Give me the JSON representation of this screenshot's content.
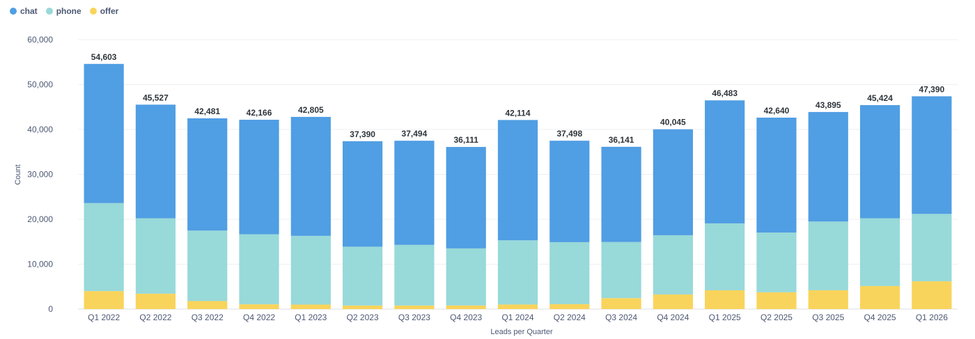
{
  "chart_data": {
    "type": "bar",
    "stacked": true,
    "xlabel": "Leads per Quarter",
    "ylabel": "Count",
    "ylim": [
      0,
      60000
    ],
    "yticks": [
      0,
      10000,
      20000,
      30000,
      40000,
      50000,
      60000
    ],
    "ytick_labels": [
      "0",
      "10,000",
      "20,000",
      "30,000",
      "40,000",
      "50,000",
      "60,000"
    ],
    "grid": true,
    "legend_position": "top-left",
    "categories": [
      "Q1 2022",
      "Q2 2022",
      "Q3 2022",
      "Q4 2022",
      "Q1 2023",
      "Q2 2023",
      "Q3 2023",
      "Q4 2023",
      "Q1 2024",
      "Q2 2024",
      "Q3 2024",
      "Q4 2024",
      "Q1 2025",
      "Q2 2025",
      "Q3 2025",
      "Q4 2025",
      "Q1 2026"
    ],
    "series": [
      {
        "name": "chat",
        "color": "#509ee3",
        "values": [
          31000,
          25300,
          25000,
          25500,
          26500,
          23500,
          23200,
          22600,
          26800,
          22600,
          21200,
          23600,
          27400,
          25600,
          24400,
          25200,
          26200
        ]
      },
      {
        "name": "phone",
        "color": "#98d9d9",
        "values": [
          19600,
          16800,
          15700,
          15600,
          15300,
          13100,
          13500,
          12700,
          14300,
          13800,
          12500,
          13200,
          14900,
          13300,
          15300,
          15100,
          15000
        ]
      },
      {
        "name": "offer",
        "color": "#f9d45c",
        "values": [
          4003,
          3427,
          1781,
          1066,
          1005,
          790,
          794,
          811,
          1014,
          1098,
          2441,
          3245,
          4183,
          3740,
          4195,
          5124,
          6190
        ]
      }
    ],
    "totals": [
      54603,
      45527,
      42481,
      42166,
      42805,
      37390,
      37494,
      36111,
      42114,
      37498,
      36141,
      40045,
      46483,
      42640,
      43895,
      45424,
      47390
    ],
    "total_labels": [
      "54,603",
      "45,527",
      "42,481",
      "42,166",
      "42,805",
      "37,390",
      "37,494",
      "36,111",
      "42,114",
      "37,498",
      "36,141",
      "40,045",
      "46,483",
      "42,640",
      "43,895",
      "45,424",
      "47,390"
    ]
  }
}
